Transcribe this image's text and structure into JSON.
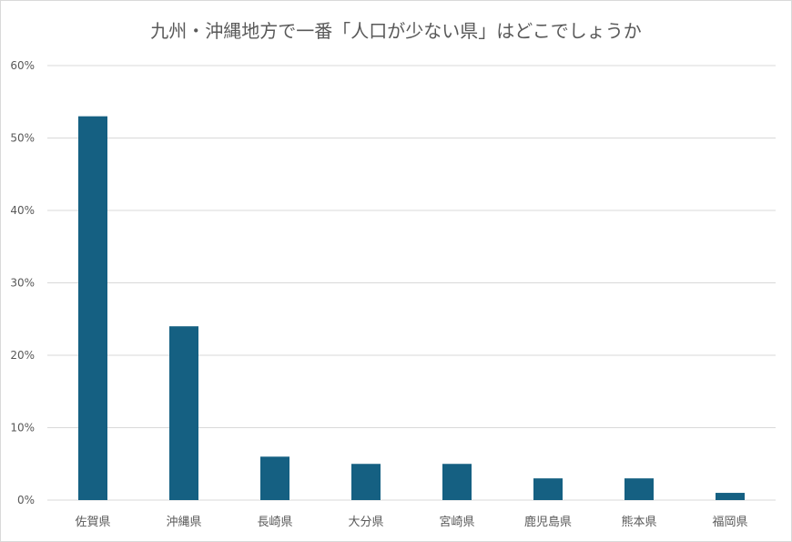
{
  "chart_data": {
    "type": "bar",
    "title": "九州・沖縄地方で一番「人口が少ない県」はどこでしょうか",
    "categories": [
      "佐賀県",
      "沖縄県",
      "長崎県",
      "大分県",
      "宮崎県",
      "鹿児島県",
      "熊本県",
      "福岡県"
    ],
    "values": [
      53,
      24,
      6,
      5,
      5,
      3,
      3,
      1
    ],
    "unit": "%",
    "ylim": [
      0,
      60
    ],
    "yticks": [
      "0%",
      "10%",
      "20%",
      "30%",
      "40%",
      "50%",
      "60%"
    ],
    "grid": true,
    "bar_color": "#156082",
    "grid_color": "#d9d9d9",
    "text_color": "#595959"
  }
}
